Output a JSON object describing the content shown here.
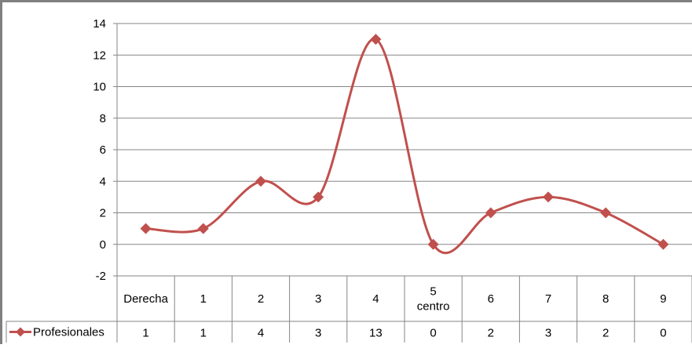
{
  "chart_data": {
    "type": "line",
    "smooth": true,
    "categories": [
      [
        "Derecha"
      ],
      [
        "1"
      ],
      [
        "2"
      ],
      [
        "3"
      ],
      [
        "4"
      ],
      [
        "5",
        "centro"
      ],
      [
        "6"
      ],
      [
        "7"
      ],
      [
        "8"
      ],
      [
        "9"
      ]
    ],
    "series": [
      {
        "name": "Profesionales",
        "values": [
          1,
          1,
          4,
          3,
          13,
          0,
          2,
          3,
          2,
          0
        ],
        "color": "#c0504d",
        "marker": "diamond"
      }
    ],
    "ylim": [
      -2,
      14
    ],
    "yticks": [
      "-2",
      "0",
      "2",
      "4",
      "6",
      "8",
      "10",
      "12",
      "14"
    ],
    "grid": "horizontal",
    "legend": "data-table-left",
    "data_table": true,
    "colors": {
      "frame": "#808080",
      "grid": "#868686",
      "series": "#c0504d",
      "text": "#000000"
    }
  }
}
